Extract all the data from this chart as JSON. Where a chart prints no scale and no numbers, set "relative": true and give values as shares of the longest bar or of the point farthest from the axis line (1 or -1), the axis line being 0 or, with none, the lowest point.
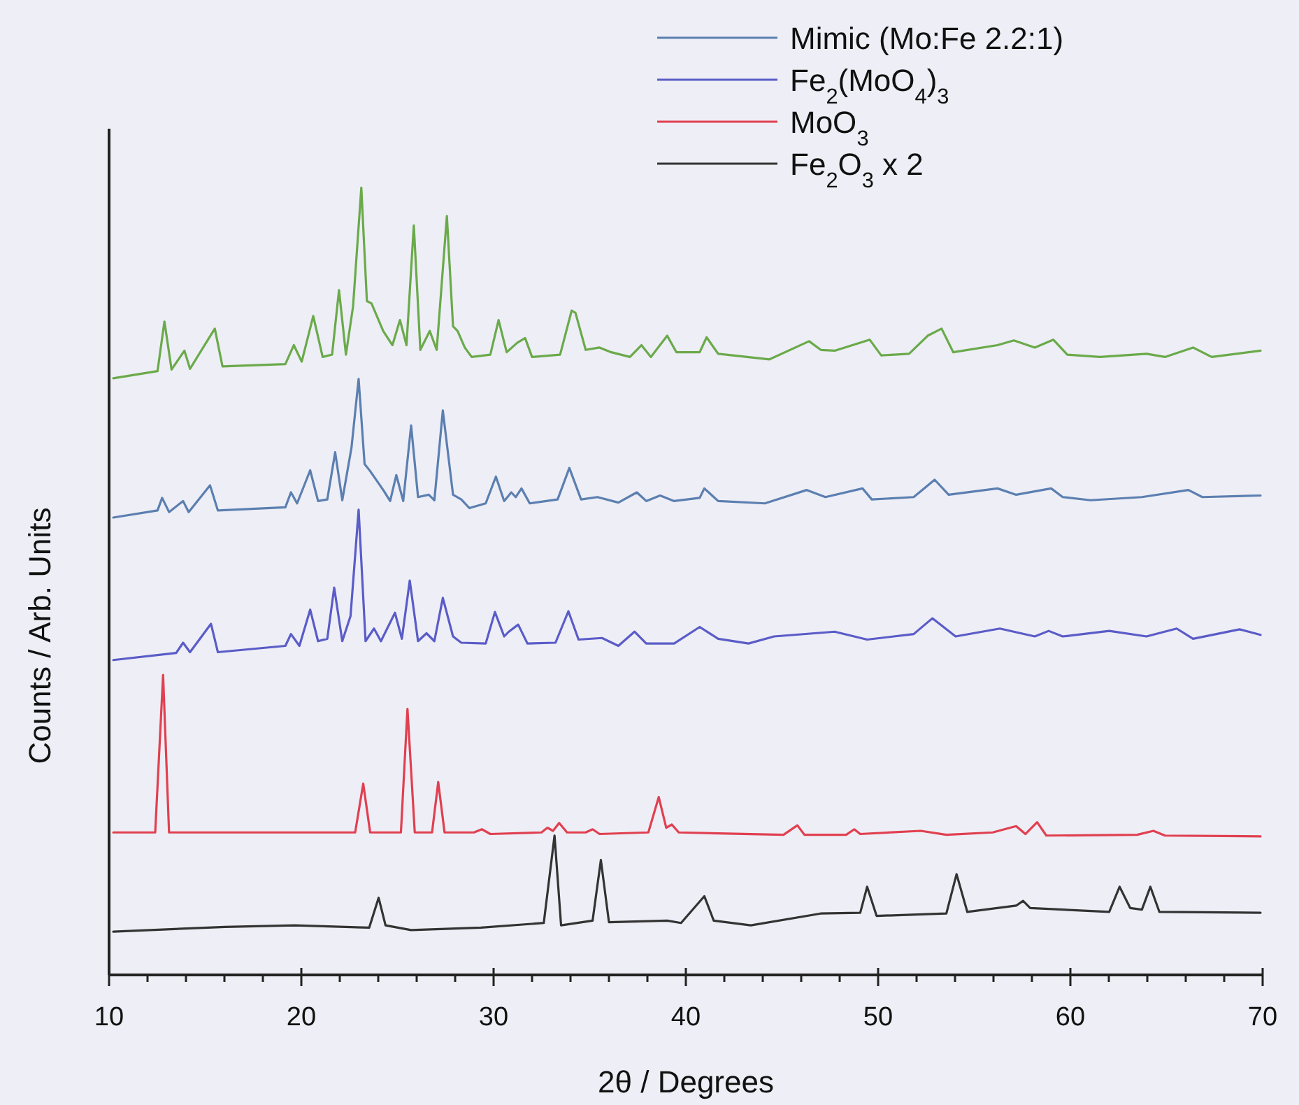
{
  "chart_data": {
    "type": "line",
    "xlabel": "2θ / Degrees",
    "ylabel": "Counts / Arb. Units",
    "relative": true,
    "xlim": [
      10,
      70
    ],
    "xticks": [
      10,
      {
        "value": 12,
        "label": null
      },
      {
        "value": 14,
        "label": null
      },
      {
        "value": 16,
        "label": null
      },
      {
        "value": 18,
        "label": null
      },
      20,
      {
        "value": 22,
        "label": null
      },
      {
        "value": 24,
        "label": null
      },
      {
        "value": 26,
        "label": null
      },
      {
        "value": 28,
        "label": null
      },
      30,
      {
        "value": 32,
        "label": null
      },
      {
        "value": 34,
        "label": null
      },
      {
        "value": 36,
        "label": null
      },
      {
        "value": 38,
        "label": null
      },
      40,
      {
        "value": 42,
        "label": null
      },
      {
        "value": 44,
        "label": null
      },
      {
        "value": 46,
        "label": null
      },
      {
        "value": 48,
        "label": null
      },
      50,
      {
        "value": 52,
        "label": null
      },
      {
        "value": 54,
        "label": null
      },
      {
        "value": 56,
        "label": null
      },
      {
        "value": 58,
        "label": null
      },
      60,
      {
        "value": 62,
        "label": null
      },
      {
        "value": 64,
        "label": null
      },
      {
        "value": 66,
        "label": null
      },
      {
        "value": 68,
        "label": null
      },
      70
    ],
    "grid": false,
    "legend": "top right",
    "line_style": "solid",
    "series": [
      {
        "color": "#6aaa4a",
        "x": [
          10.22,
          12.52,
          12.88,
          13.25,
          13.92,
          14.21,
          15.5,
          15.9,
          19.17,
          19.61,
          20.02,
          20.62,
          21.11,
          21.6,
          21.96,
          22.32,
          22.69,
          23.12,
          23.41,
          23.65,
          24.26,
          24.74,
          25.13,
          25.47,
          25.85,
          26.19,
          26.68,
          27.04,
          27.57,
          27.89,
          28.13,
          28.5,
          28.86,
          29.83,
          30.26,
          30.68,
          31.23,
          31.64,
          32.0,
          33.46,
          34.06,
          34.26,
          34.79,
          35.51,
          36.12,
          37.09,
          37.69,
          38.18,
          39.03,
          39.51,
          40.72,
          41.08,
          41.68,
          44.35,
          46.41,
          47.02,
          47.74,
          49.56,
          50.16,
          51.61,
          52.58,
          53.3,
          53.91,
          56.21,
          57.06,
          58.15,
          59.11,
          59.84,
          61.54,
          63.96,
          64.92,
          66.38,
          67.35,
          69.89
        ],
        "values": [
          0.758,
          0.767,
          0.83,
          0.769,
          0.793,
          0.77,
          0.821,
          0.773,
          0.776,
          0.8,
          0.779,
          0.837,
          0.785,
          0.788,
          0.87,
          0.788,
          0.849,
          1.0,
          0.856,
          0.853,
          0.818,
          0.8,
          0.832,
          0.8,
          0.952,
          0.794,
          0.818,
          0.794,
          0.964,
          0.824,
          0.818,
          0.797,
          0.785,
          0.788,
          0.832,
          0.791,
          0.803,
          0.809,
          0.785,
          0.788,
          0.844,
          0.841,
          0.794,
          0.797,
          0.791,
          0.785,
          0.8,
          0.785,
          0.812,
          0.791,
          0.791,
          0.81,
          0.789,
          0.782,
          0.805,
          0.794,
          0.793,
          0.807,
          0.787,
          0.789,
          0.812,
          0.821,
          0.791,
          0.8,
          0.806,
          0.797,
          0.807,
          0.788,
          0.785,
          0.789,
          0.785,
          0.797,
          0.785,
          0.793
        ]
      },
      {
        "name": "Mimic (Mo:Fe 2.2:1)",
        "color": "#5b7fb0",
        "x": [
          10.22,
          12.52,
          12.76,
          13.12,
          13.85,
          14.14,
          15.25,
          15.66,
          19.17,
          19.46,
          19.78,
          20.46,
          20.87,
          21.35,
          21.76,
          22.13,
          22.61,
          22.98,
          23.29,
          23.58,
          24.26,
          24.62,
          24.94,
          25.3,
          25.71,
          26.07,
          26.63,
          26.92,
          27.36,
          27.89,
          28.32,
          28.74,
          29.59,
          30.12,
          30.55,
          30.92,
          31.15,
          31.45,
          31.88,
          33.33,
          33.94,
          34.55,
          35.4,
          36.49,
          37.45,
          37.94,
          38.66,
          39.39,
          40.72,
          40.96,
          41.68,
          44.11,
          46.29,
          47.26,
          49.19,
          49.67,
          51.85,
          52.94,
          53.67,
          56.21,
          57.18,
          59.0,
          59.6,
          61.05,
          63.72,
          66.14,
          66.86,
          69.89
        ],
        "values": [
          0.581,
          0.59,
          0.606,
          0.588,
          0.602,
          0.588,
          0.622,
          0.59,
          0.594,
          0.613,
          0.599,
          0.641,
          0.602,
          0.604,
          0.664,
          0.603,
          0.67,
          0.757,
          0.649,
          0.64,
          0.616,
          0.602,
          0.635,
          0.602,
          0.698,
          0.607,
          0.61,
          0.603,
          0.717,
          0.61,
          0.604,
          0.593,
          0.599,
          0.633,
          0.602,
          0.613,
          0.607,
          0.618,
          0.599,
          0.604,
          0.644,
          0.604,
          0.607,
          0.6,
          0.613,
          0.602,
          0.609,
          0.602,
          0.606,
          0.618,
          0.602,
          0.599,
          0.616,
          0.607,
          0.618,
          0.604,
          0.607,
          0.629,
          0.61,
          0.618,
          0.61,
          0.618,
          0.607,
          0.603,
          0.607,
          0.616,
          0.607,
          0.609
        ]
      },
      {
        "name": "Fe$_{2}$(MoO$_{4}$)$_{3}$",
        "color": "#5a5cc8",
        "x": [
          10.22,
          13.49,
          13.85,
          14.21,
          15.3,
          15.66,
          19.17,
          19.46,
          19.9,
          20.46,
          20.87,
          21.35,
          21.71,
          22.13,
          22.56,
          22.98,
          23.34,
          23.78,
          24.14,
          24.87,
          25.23,
          25.64,
          26.07,
          26.51,
          26.92,
          27.36,
          27.89,
          28.32,
          29.59,
          30.07,
          30.55,
          30.79,
          31.28,
          31.76,
          33.22,
          33.89,
          34.42,
          35.64,
          36.49,
          37.33,
          37.94,
          39.39,
          40.72,
          41.68,
          43.26,
          44.59,
          47.74,
          49.43,
          51.85,
          52.82,
          54.03,
          56.33,
          58.15,
          58.87,
          59.6,
          62.02,
          63.96,
          65.53,
          66.38,
          68.8,
          69.89
        ],
        "values": [
          0.4,
          0.409,
          0.422,
          0.41,
          0.446,
          0.41,
          0.418,
          0.433,
          0.418,
          0.464,
          0.424,
          0.427,
          0.492,
          0.424,
          0.456,
          0.591,
          0.424,
          0.44,
          0.424,
          0.46,
          0.427,
          0.501,
          0.424,
          0.434,
          0.424,
          0.479,
          0.43,
          0.422,
          0.421,
          0.461,
          0.43,
          0.436,
          0.445,
          0.421,
          0.422,
          0.462,
          0.426,
          0.428,
          0.418,
          0.436,
          0.421,
          0.421,
          0.442,
          0.427,
          0.421,
          0.43,
          0.436,
          0.426,
          0.433,
          0.453,
          0.43,
          0.44,
          0.43,
          0.437,
          0.43,
          0.437,
          0.43,
          0.44,
          0.427,
          0.439,
          0.432
        ]
      },
      {
        "name": "MoO$_{3}$",
        "color": "#e04050",
        "x": [
          10.22,
          12.4,
          12.81,
          13.12,
          22.8,
          23.22,
          23.58,
          25.18,
          25.52,
          25.9,
          26.8,
          27.12,
          27.45,
          28.98,
          29.39,
          29.83,
          32.49,
          32.8,
          33.09,
          33.41,
          33.82,
          34.79,
          35.15,
          35.51,
          38.05,
          38.59,
          38.98,
          39.27,
          39.63,
          45.08,
          45.8,
          46.17,
          48.34,
          48.76,
          49.07,
          52.22,
          53.55,
          55.96,
          57.18,
          57.66,
          58.27,
          58.75,
          63.47,
          64.32,
          64.92,
          69.89
        ],
        "values": [
          0.181,
          0.181,
          0.381,
          0.181,
          0.181,
          0.243,
          0.181,
          0.181,
          0.338,
          0.181,
          0.181,
          0.245,
          0.181,
          0.181,
          0.185,
          0.179,
          0.181,
          0.187,
          0.183,
          0.193,
          0.181,
          0.181,
          0.185,
          0.179,
          0.181,
          0.226,
          0.187,
          0.191,
          0.181,
          0.178,
          0.19,
          0.178,
          0.178,
          0.185,
          0.179,
          0.183,
          0.178,
          0.181,
          0.189,
          0.179,
          0.194,
          0.177,
          0.178,
          0.183,
          0.177,
          0.176
        ]
      },
      {
        "name": "Fe$_{2}$O$_{3}$ x 2",
        "color": "#333333",
        "x": [
          10.22,
          16.03,
          19.66,
          23.53,
          24.02,
          24.38,
          25.71,
          29.34,
          32.61,
          33.17,
          33.51,
          35.15,
          35.58,
          36.0,
          39.03,
          39.75,
          40.96,
          41.45,
          43.38,
          47.01,
          49.07,
          49.43,
          49.92,
          53.55,
          54.08,
          54.64,
          57.18,
          57.54,
          57.91,
          62.02,
          62.56,
          63.11,
          63.72,
          64.16,
          64.63,
          69.89
        ],
        "values": [
          0.055,
          0.061,
          0.063,
          0.06,
          0.098,
          0.063,
          0.057,
          0.06,
          0.066,
          0.177,
          0.063,
          0.069,
          0.146,
          0.067,
          0.069,
          0.066,
          0.1,
          0.069,
          0.063,
          0.078,
          0.079,
          0.112,
          0.075,
          0.078,
          0.128,
          0.08,
          0.088,
          0.094,
          0.085,
          0.08,
          0.112,
          0.085,
          0.083,
          0.112,
          0.08,
          0.079
        ]
      }
    ]
  }
}
